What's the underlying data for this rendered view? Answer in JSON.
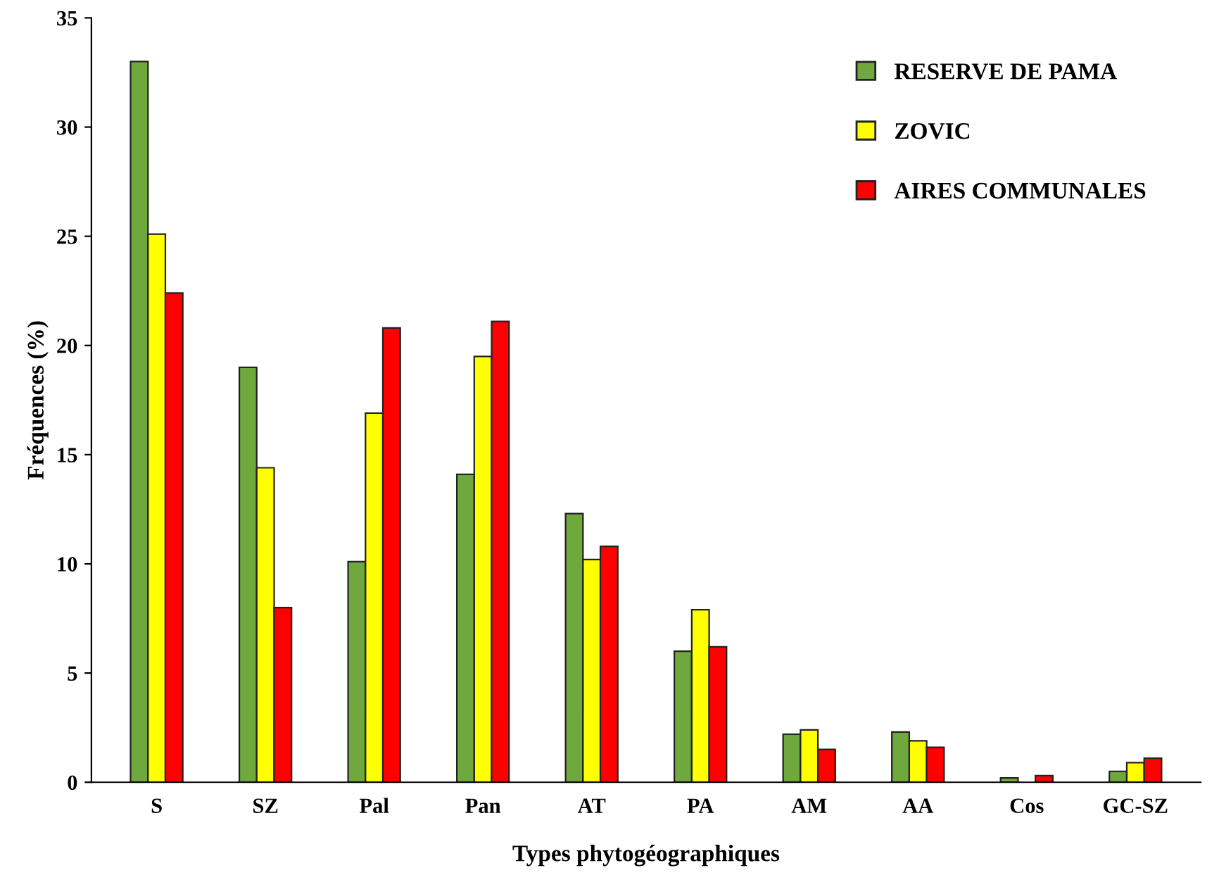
{
  "chart_data": {
    "type": "bar",
    "xlabel": "Types phytogéographiques",
    "ylabel": "Fréquences (%)",
    "categories": [
      "S",
      "SZ",
      "Pal",
      "Pan",
      "AT",
      "PA",
      "AM",
      "AA",
      "Cos",
      "GC-SZ"
    ],
    "series": [
      {
        "name": "RESERVE DE PAMA",
        "color": "#6fa83c",
        "values": [
          33.0,
          19.0,
          10.1,
          14.1,
          12.3,
          6.0,
          2.2,
          2.3,
          0.2,
          0.5
        ]
      },
      {
        "name": "ZOVIC",
        "color": "#ffff00",
        "values": [
          25.1,
          14.4,
          16.9,
          19.5,
          10.2,
          7.9,
          2.4,
          1.9,
          null,
          0.9
        ]
      },
      {
        "name": "AIRES COMMUNALES",
        "color": "#ff0000",
        "values": [
          22.4,
          8.0,
          20.8,
          21.1,
          10.8,
          6.2,
          1.5,
          1.6,
          0.3,
          1.1
        ]
      }
    ],
    "ylim": [
      0,
      35
    ],
    "yticks": [
      0,
      5,
      10,
      15,
      20,
      25,
      30,
      35
    ],
    "grid": false,
    "legend": "top right"
  }
}
